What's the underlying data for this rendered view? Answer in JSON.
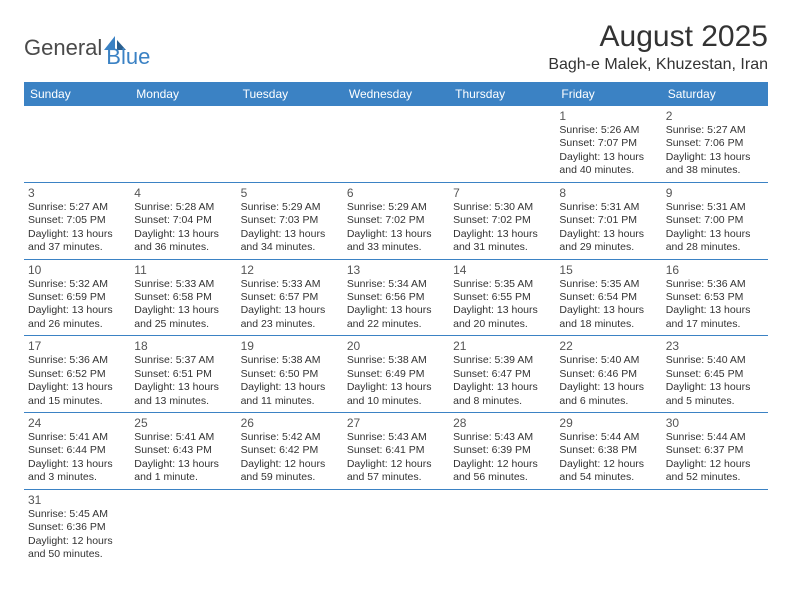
{
  "logo": {
    "general": "General",
    "blue": "Blue"
  },
  "title": "August 2025",
  "location": "Bagh-e Malek, Khuzestan, Iran",
  "colors": {
    "header_bg": "#3b82c4",
    "header_text": "#ffffff",
    "text": "#333333",
    "border": "#3b82c4"
  },
  "day_headers": [
    "Sunday",
    "Monday",
    "Tuesday",
    "Wednesday",
    "Thursday",
    "Friday",
    "Saturday"
  ],
  "weeks": [
    [
      null,
      null,
      null,
      null,
      null,
      {
        "d": "1",
        "sr": "Sunrise: 5:26 AM",
        "ss": "Sunset: 7:07 PM",
        "dl": "Daylight: 13 hours and 40 minutes."
      },
      {
        "d": "2",
        "sr": "Sunrise: 5:27 AM",
        "ss": "Sunset: 7:06 PM",
        "dl": "Daylight: 13 hours and 38 minutes."
      }
    ],
    [
      {
        "d": "3",
        "sr": "Sunrise: 5:27 AM",
        "ss": "Sunset: 7:05 PM",
        "dl": "Daylight: 13 hours and 37 minutes."
      },
      {
        "d": "4",
        "sr": "Sunrise: 5:28 AM",
        "ss": "Sunset: 7:04 PM",
        "dl": "Daylight: 13 hours and 36 minutes."
      },
      {
        "d": "5",
        "sr": "Sunrise: 5:29 AM",
        "ss": "Sunset: 7:03 PM",
        "dl": "Daylight: 13 hours and 34 minutes."
      },
      {
        "d": "6",
        "sr": "Sunrise: 5:29 AM",
        "ss": "Sunset: 7:02 PM",
        "dl": "Daylight: 13 hours and 33 minutes."
      },
      {
        "d": "7",
        "sr": "Sunrise: 5:30 AM",
        "ss": "Sunset: 7:02 PM",
        "dl": "Daylight: 13 hours and 31 minutes."
      },
      {
        "d": "8",
        "sr": "Sunrise: 5:31 AM",
        "ss": "Sunset: 7:01 PM",
        "dl": "Daylight: 13 hours and 29 minutes."
      },
      {
        "d": "9",
        "sr": "Sunrise: 5:31 AM",
        "ss": "Sunset: 7:00 PM",
        "dl": "Daylight: 13 hours and 28 minutes."
      }
    ],
    [
      {
        "d": "10",
        "sr": "Sunrise: 5:32 AM",
        "ss": "Sunset: 6:59 PM",
        "dl": "Daylight: 13 hours and 26 minutes."
      },
      {
        "d": "11",
        "sr": "Sunrise: 5:33 AM",
        "ss": "Sunset: 6:58 PM",
        "dl": "Daylight: 13 hours and 25 minutes."
      },
      {
        "d": "12",
        "sr": "Sunrise: 5:33 AM",
        "ss": "Sunset: 6:57 PM",
        "dl": "Daylight: 13 hours and 23 minutes."
      },
      {
        "d": "13",
        "sr": "Sunrise: 5:34 AM",
        "ss": "Sunset: 6:56 PM",
        "dl": "Daylight: 13 hours and 22 minutes."
      },
      {
        "d": "14",
        "sr": "Sunrise: 5:35 AM",
        "ss": "Sunset: 6:55 PM",
        "dl": "Daylight: 13 hours and 20 minutes."
      },
      {
        "d": "15",
        "sr": "Sunrise: 5:35 AM",
        "ss": "Sunset: 6:54 PM",
        "dl": "Daylight: 13 hours and 18 minutes."
      },
      {
        "d": "16",
        "sr": "Sunrise: 5:36 AM",
        "ss": "Sunset: 6:53 PM",
        "dl": "Daylight: 13 hours and 17 minutes."
      }
    ],
    [
      {
        "d": "17",
        "sr": "Sunrise: 5:36 AM",
        "ss": "Sunset: 6:52 PM",
        "dl": "Daylight: 13 hours and 15 minutes."
      },
      {
        "d": "18",
        "sr": "Sunrise: 5:37 AM",
        "ss": "Sunset: 6:51 PM",
        "dl": "Daylight: 13 hours and 13 minutes."
      },
      {
        "d": "19",
        "sr": "Sunrise: 5:38 AM",
        "ss": "Sunset: 6:50 PM",
        "dl": "Daylight: 13 hours and 11 minutes."
      },
      {
        "d": "20",
        "sr": "Sunrise: 5:38 AM",
        "ss": "Sunset: 6:49 PM",
        "dl": "Daylight: 13 hours and 10 minutes."
      },
      {
        "d": "21",
        "sr": "Sunrise: 5:39 AM",
        "ss": "Sunset: 6:47 PM",
        "dl": "Daylight: 13 hours and 8 minutes."
      },
      {
        "d": "22",
        "sr": "Sunrise: 5:40 AM",
        "ss": "Sunset: 6:46 PM",
        "dl": "Daylight: 13 hours and 6 minutes."
      },
      {
        "d": "23",
        "sr": "Sunrise: 5:40 AM",
        "ss": "Sunset: 6:45 PM",
        "dl": "Daylight: 13 hours and 5 minutes."
      }
    ],
    [
      {
        "d": "24",
        "sr": "Sunrise: 5:41 AM",
        "ss": "Sunset: 6:44 PM",
        "dl": "Daylight: 13 hours and 3 minutes."
      },
      {
        "d": "25",
        "sr": "Sunrise: 5:41 AM",
        "ss": "Sunset: 6:43 PM",
        "dl": "Daylight: 13 hours and 1 minute."
      },
      {
        "d": "26",
        "sr": "Sunrise: 5:42 AM",
        "ss": "Sunset: 6:42 PM",
        "dl": "Daylight: 12 hours and 59 minutes."
      },
      {
        "d": "27",
        "sr": "Sunrise: 5:43 AM",
        "ss": "Sunset: 6:41 PM",
        "dl": "Daylight: 12 hours and 57 minutes."
      },
      {
        "d": "28",
        "sr": "Sunrise: 5:43 AM",
        "ss": "Sunset: 6:39 PM",
        "dl": "Daylight: 12 hours and 56 minutes."
      },
      {
        "d": "29",
        "sr": "Sunrise: 5:44 AM",
        "ss": "Sunset: 6:38 PM",
        "dl": "Daylight: 12 hours and 54 minutes."
      },
      {
        "d": "30",
        "sr": "Sunrise: 5:44 AM",
        "ss": "Sunset: 6:37 PM",
        "dl": "Daylight: 12 hours and 52 minutes."
      }
    ],
    [
      {
        "d": "31",
        "sr": "Sunrise: 5:45 AM",
        "ss": "Sunset: 6:36 PM",
        "dl": "Daylight: 12 hours and 50 minutes."
      },
      null,
      null,
      null,
      null,
      null,
      null
    ]
  ]
}
